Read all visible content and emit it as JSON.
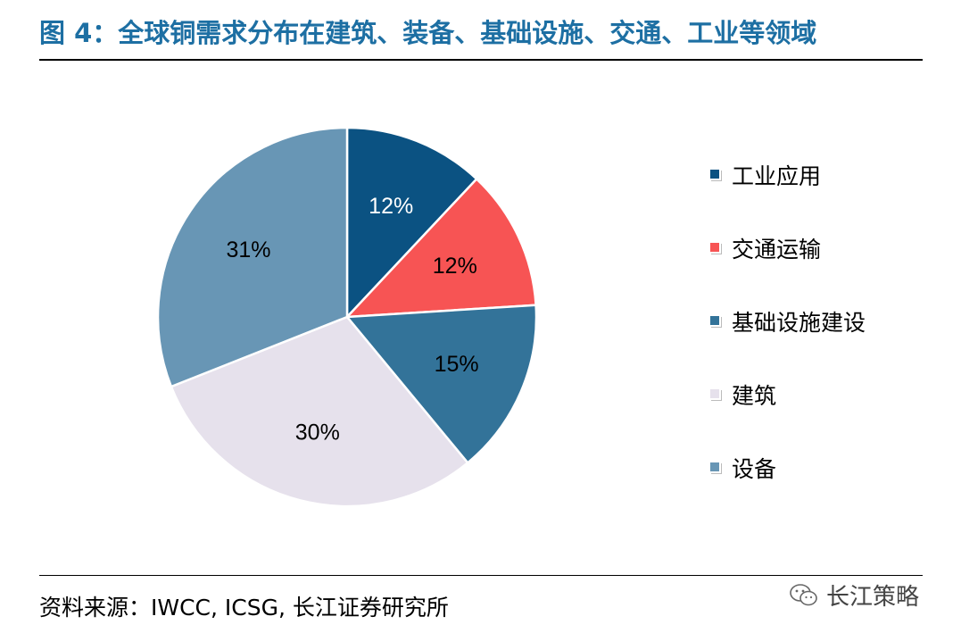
{
  "title": "图 4：全球铜需求分布在建筑、装备、基础设施、交通、工业等领域",
  "source": "资料来源：IWCC, ICSG, 长江证券研究所",
  "watermark": {
    "text": "长江策略",
    "icon": "wechat-icon"
  },
  "chart_data": {
    "type": "pie",
    "unit": "%",
    "start_angle_deg": 0,
    "direction": "clockwise",
    "legend_position": "right",
    "slices": [
      {
        "label": "工业应用",
        "value": 12,
        "display": "12%",
        "color": "#0b5282",
        "label_color": "#ffffff"
      },
      {
        "label": "交通运输",
        "value": 12,
        "display": "12%",
        "color": "#f75454",
        "label_color": "#000000"
      },
      {
        "label": "基础设施建设",
        "value": 15,
        "display": "15%",
        "color": "#337399",
        "label_color": "#000000"
      },
      {
        "label": "建筑",
        "value": 30,
        "display": "30%",
        "color": "#e6e1ec",
        "label_color": "#000000"
      },
      {
        "label": "设备",
        "value": 31,
        "display": "31%",
        "color": "#6896b5",
        "label_color": "#000000"
      }
    ]
  }
}
